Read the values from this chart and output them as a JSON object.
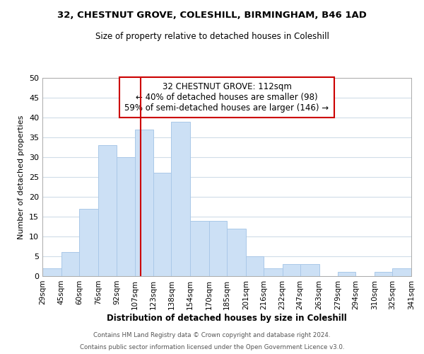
{
  "title1": "32, CHESTNUT GROVE, COLESHILL, BIRMINGHAM, B46 1AD",
  "title2": "Size of property relative to detached houses in Coleshill",
  "xlabel": "Distribution of detached houses by size in Coleshill",
  "ylabel": "Number of detached properties",
  "footer1": "Contains HM Land Registry data © Crown copyright and database right 2024.",
  "footer2": "Contains public sector information licensed under the Open Government Licence v3.0.",
  "annotation_title": "32 CHESTNUT GROVE: 112sqm",
  "annotation_line1": "← 40% of detached houses are smaller (98)",
  "annotation_line2": "59% of semi-detached houses are larger (146) →",
  "bin_edges": [
    29,
    45,
    60,
    76,
    92,
    107,
    123,
    138,
    154,
    170,
    185,
    201,
    216,
    232,
    247,
    263,
    279,
    294,
    310,
    325,
    341
  ],
  "bin_counts": [
    2,
    6,
    17,
    33,
    30,
    37,
    26,
    39,
    14,
    14,
    12,
    5,
    2,
    3,
    3,
    0,
    1,
    0,
    1,
    2
  ],
  "bar_color": "#cce0f5",
  "bar_edgecolor": "#aac8e8",
  "property_line_x": 112,
  "property_line_color": "#cc0000",
  "ylim": [
    0,
    50
  ],
  "yticks": [
    0,
    5,
    10,
    15,
    20,
    25,
    30,
    35,
    40,
    45,
    50
  ],
  "tick_labels": [
    "29sqm",
    "45sqm",
    "60sqm",
    "76sqm",
    "92sqm",
    "107sqm",
    "123sqm",
    "138sqm",
    "154sqm",
    "170sqm",
    "185sqm",
    "201sqm",
    "216sqm",
    "232sqm",
    "247sqm",
    "263sqm",
    "279sqm",
    "294sqm",
    "310sqm",
    "325sqm",
    "341sqm"
  ],
  "grid_color": "#d0dce8",
  "background_color": "#ffffff",
  "annotation_box_edgecolor": "#cc0000",
  "annotation_box_facecolor": "#ffffff"
}
